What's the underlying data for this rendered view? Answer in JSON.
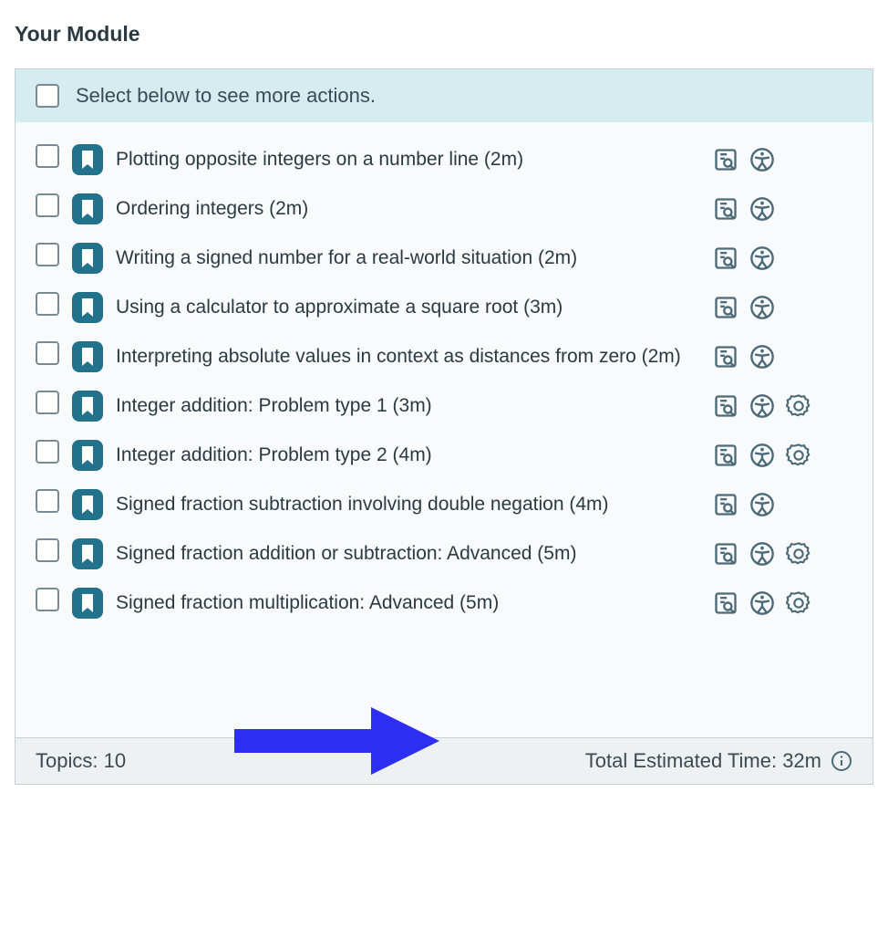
{
  "colors": {
    "border": "#c5ced4",
    "panel_bg": "#f8fafb",
    "select_bar_bg": "#d5edf1",
    "text": "#2b3a42",
    "icon": "#4b6977",
    "bookmark_bg": "#21728a",
    "footer_bg": "#eef1f2",
    "arrow": "#2e2ef0"
  },
  "title": "Your Module",
  "select_bar_label": "Select below to see more actions.",
  "topics": [
    {
      "title": "Plotting opposite integers on a number line (2m)",
      "has_badge": false
    },
    {
      "title": "Ordering integers (2m)",
      "has_badge": false
    },
    {
      "title": "Writing a signed number for a real-world situation (2m)",
      "has_badge": false
    },
    {
      "title": "Using a calculator to approximate a square root (3m)",
      "has_badge": false
    },
    {
      "title": "Interpreting absolute values in context as distances from zero (2m)",
      "has_badge": false
    },
    {
      "title": "Integer addition: Problem type 1 (3m)",
      "has_badge": true
    },
    {
      "title": "Integer addition: Problem type 2 (4m)",
      "has_badge": true
    },
    {
      "title": "Signed fraction subtraction involving double negation (4m)",
      "has_badge": false
    },
    {
      "title": "Signed fraction addition or subtraction: Advanced (5m)",
      "has_badge": true
    },
    {
      "title": "Signed fraction multiplication: Advanced (5m)",
      "has_badge": true
    }
  ],
  "footer": {
    "topics_label": "Topics: 10",
    "time_label": "Total Estimated Time: 32m"
  }
}
